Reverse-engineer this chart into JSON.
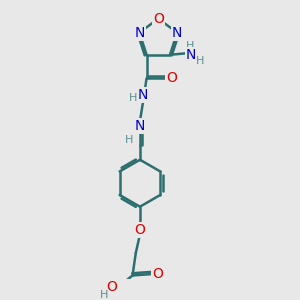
{
  "bg_color": "#e8e8e8",
  "bond_color": "#2d6e6e",
  "bond_width": 1.8,
  "atom_colors": {
    "C": "#2d6e6e",
    "H": "#5a9090",
    "N": "#0000cc",
    "O": "#dd0000"
  },
  "font_size": 10,
  "font_size_sub": 8,
  "figsize": [
    3.0,
    3.0
  ],
  "dpi": 100,
  "xlim": [
    0,
    10
  ],
  "ylim": [
    0,
    10
  ]
}
